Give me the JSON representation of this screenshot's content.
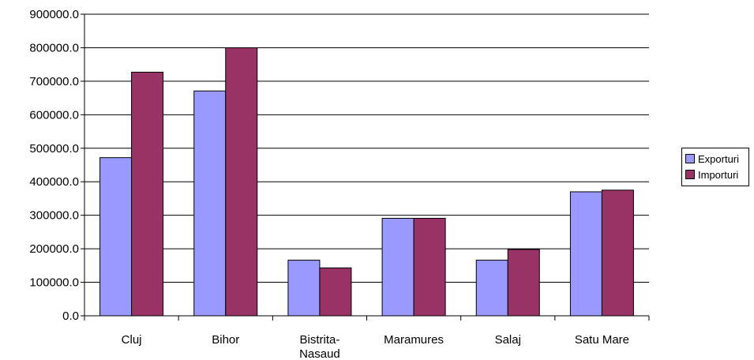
{
  "chart_data": {
    "type": "bar",
    "categories": [
      [
        "Cluj"
      ],
      [
        "Bihor"
      ],
      [
        "Bistrita-",
        "Nasaud"
      ],
      [
        "Maramures"
      ],
      [
        "Salaj"
      ],
      [
        "Satu Mare"
      ]
    ],
    "series": [
      {
        "name": "Exporturi",
        "values": [
          472000,
          671000,
          166000,
          291000,
          166000,
          370000
        ],
        "color": "#9999ff"
      },
      {
        "name": "Importuri",
        "values": [
          727000,
          800000,
          143000,
          291000,
          198000,
          375000
        ],
        "color": "#993366"
      }
    ],
    "ylim": [
      0,
      900000
    ],
    "y_ticks": [
      "0.0",
      "100000.0",
      "200000.0",
      "300000.0",
      "400000.0",
      "500000.0",
      "600000.0",
      "700000.0",
      "800000.0",
      "900000.0"
    ],
    "grid": true,
    "legend_position": "right"
  }
}
